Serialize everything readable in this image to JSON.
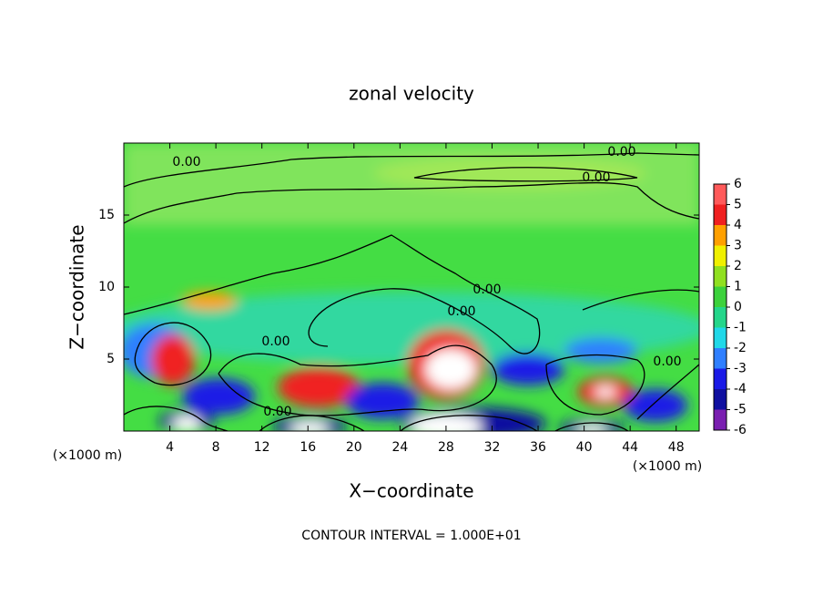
{
  "chart_data": {
    "type": "contour",
    "title": "zonal velocity",
    "x_label": "X−coordinate",
    "y_label": "Z−coordinate",
    "x_unit": "(×1000 m)",
    "footer": "CONTOUR INTERVAL = 1.000E+01",
    "xlim": [
      0,
      50
    ],
    "xticks": [
      4,
      8,
      12,
      16,
      20,
      24,
      28,
      32,
      36,
      40,
      44,
      48
    ],
    "ylim": [
      0,
      20
    ],
    "yticks": [
      5,
      10,
      15
    ],
    "colorbar": {
      "lim": [
        -6,
        6
      ],
      "ticks": [
        -6,
        -5,
        -4,
        -3,
        -2,
        -1,
        0,
        1,
        2,
        3,
        4,
        5,
        6
      ],
      "colors": [
        "#7a1fb0",
        "#1010a0",
        "#1a1ae6",
        "#2f7fff",
        "#20d8e8",
        "#24d68a",
        "#3cd23c",
        "#90e020",
        "#f0f000",
        "#ffa000",
        "#f02020",
        "#ff5a5a"
      ]
    },
    "contour_labels": [
      "0.00",
      "0.00",
      "0.00",
      "0.00",
      "0.00",
      "0.00",
      "0.00",
      "0.00"
    ]
  }
}
